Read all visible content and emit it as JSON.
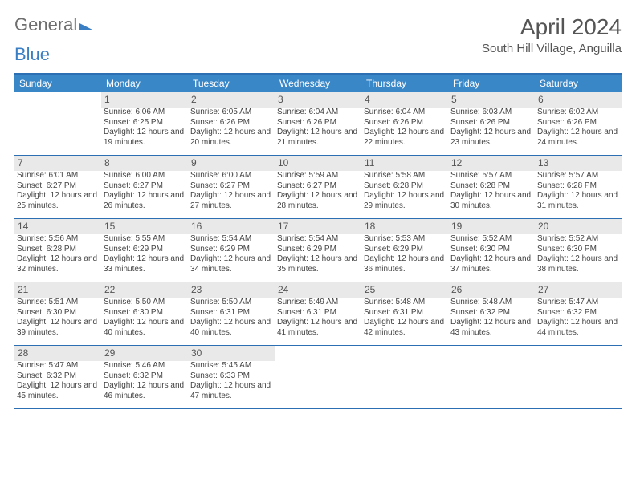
{
  "brand": {
    "text1": "General",
    "text2": "Blue"
  },
  "title": "April 2024",
  "location": "South Hill Village, Anguilla",
  "colors": {
    "header_bg": "#3a87c8",
    "rule": "#2d6fb3",
    "daynum_bg": "#e9e9e9",
    "text": "#444444"
  },
  "day_headers": [
    "Sunday",
    "Monday",
    "Tuesday",
    "Wednesday",
    "Thursday",
    "Friday",
    "Saturday"
  ],
  "weeks": [
    [
      {
        "day": "",
        "sunrise": "",
        "sunset": "",
        "daylight": ""
      },
      {
        "day": "1",
        "sunrise": "Sunrise: 6:06 AM",
        "sunset": "Sunset: 6:25 PM",
        "daylight": "Daylight: 12 hours and 19 minutes."
      },
      {
        "day": "2",
        "sunrise": "Sunrise: 6:05 AM",
        "sunset": "Sunset: 6:26 PM",
        "daylight": "Daylight: 12 hours and 20 minutes."
      },
      {
        "day": "3",
        "sunrise": "Sunrise: 6:04 AM",
        "sunset": "Sunset: 6:26 PM",
        "daylight": "Daylight: 12 hours and 21 minutes."
      },
      {
        "day": "4",
        "sunrise": "Sunrise: 6:04 AM",
        "sunset": "Sunset: 6:26 PM",
        "daylight": "Daylight: 12 hours and 22 minutes."
      },
      {
        "day": "5",
        "sunrise": "Sunrise: 6:03 AM",
        "sunset": "Sunset: 6:26 PM",
        "daylight": "Daylight: 12 hours and 23 minutes."
      },
      {
        "day": "6",
        "sunrise": "Sunrise: 6:02 AM",
        "sunset": "Sunset: 6:26 PM",
        "daylight": "Daylight: 12 hours and 24 minutes."
      }
    ],
    [
      {
        "day": "7",
        "sunrise": "Sunrise: 6:01 AM",
        "sunset": "Sunset: 6:27 PM",
        "daylight": "Daylight: 12 hours and 25 minutes."
      },
      {
        "day": "8",
        "sunrise": "Sunrise: 6:00 AM",
        "sunset": "Sunset: 6:27 PM",
        "daylight": "Daylight: 12 hours and 26 minutes."
      },
      {
        "day": "9",
        "sunrise": "Sunrise: 6:00 AM",
        "sunset": "Sunset: 6:27 PM",
        "daylight": "Daylight: 12 hours and 27 minutes."
      },
      {
        "day": "10",
        "sunrise": "Sunrise: 5:59 AM",
        "sunset": "Sunset: 6:27 PM",
        "daylight": "Daylight: 12 hours and 28 minutes."
      },
      {
        "day": "11",
        "sunrise": "Sunrise: 5:58 AM",
        "sunset": "Sunset: 6:28 PM",
        "daylight": "Daylight: 12 hours and 29 minutes."
      },
      {
        "day": "12",
        "sunrise": "Sunrise: 5:57 AM",
        "sunset": "Sunset: 6:28 PM",
        "daylight": "Daylight: 12 hours and 30 minutes."
      },
      {
        "day": "13",
        "sunrise": "Sunrise: 5:57 AM",
        "sunset": "Sunset: 6:28 PM",
        "daylight": "Daylight: 12 hours and 31 minutes."
      }
    ],
    [
      {
        "day": "14",
        "sunrise": "Sunrise: 5:56 AM",
        "sunset": "Sunset: 6:28 PM",
        "daylight": "Daylight: 12 hours and 32 minutes."
      },
      {
        "day": "15",
        "sunrise": "Sunrise: 5:55 AM",
        "sunset": "Sunset: 6:29 PM",
        "daylight": "Daylight: 12 hours and 33 minutes."
      },
      {
        "day": "16",
        "sunrise": "Sunrise: 5:54 AM",
        "sunset": "Sunset: 6:29 PM",
        "daylight": "Daylight: 12 hours and 34 minutes."
      },
      {
        "day": "17",
        "sunrise": "Sunrise: 5:54 AM",
        "sunset": "Sunset: 6:29 PM",
        "daylight": "Daylight: 12 hours and 35 minutes."
      },
      {
        "day": "18",
        "sunrise": "Sunrise: 5:53 AM",
        "sunset": "Sunset: 6:29 PM",
        "daylight": "Daylight: 12 hours and 36 minutes."
      },
      {
        "day": "19",
        "sunrise": "Sunrise: 5:52 AM",
        "sunset": "Sunset: 6:30 PM",
        "daylight": "Daylight: 12 hours and 37 minutes."
      },
      {
        "day": "20",
        "sunrise": "Sunrise: 5:52 AM",
        "sunset": "Sunset: 6:30 PM",
        "daylight": "Daylight: 12 hours and 38 minutes."
      }
    ],
    [
      {
        "day": "21",
        "sunrise": "Sunrise: 5:51 AM",
        "sunset": "Sunset: 6:30 PM",
        "daylight": "Daylight: 12 hours and 39 minutes."
      },
      {
        "day": "22",
        "sunrise": "Sunrise: 5:50 AM",
        "sunset": "Sunset: 6:30 PM",
        "daylight": "Daylight: 12 hours and 40 minutes."
      },
      {
        "day": "23",
        "sunrise": "Sunrise: 5:50 AM",
        "sunset": "Sunset: 6:31 PM",
        "daylight": "Daylight: 12 hours and 40 minutes."
      },
      {
        "day": "24",
        "sunrise": "Sunrise: 5:49 AM",
        "sunset": "Sunset: 6:31 PM",
        "daylight": "Daylight: 12 hours and 41 minutes."
      },
      {
        "day": "25",
        "sunrise": "Sunrise: 5:48 AM",
        "sunset": "Sunset: 6:31 PM",
        "daylight": "Daylight: 12 hours and 42 minutes."
      },
      {
        "day": "26",
        "sunrise": "Sunrise: 5:48 AM",
        "sunset": "Sunset: 6:32 PM",
        "daylight": "Daylight: 12 hours and 43 minutes."
      },
      {
        "day": "27",
        "sunrise": "Sunrise: 5:47 AM",
        "sunset": "Sunset: 6:32 PM",
        "daylight": "Daylight: 12 hours and 44 minutes."
      }
    ],
    [
      {
        "day": "28",
        "sunrise": "Sunrise: 5:47 AM",
        "sunset": "Sunset: 6:32 PM",
        "daylight": "Daylight: 12 hours and 45 minutes."
      },
      {
        "day": "29",
        "sunrise": "Sunrise: 5:46 AM",
        "sunset": "Sunset: 6:32 PM",
        "daylight": "Daylight: 12 hours and 46 minutes."
      },
      {
        "day": "30",
        "sunrise": "Sunrise: 5:45 AM",
        "sunset": "Sunset: 6:33 PM",
        "daylight": "Daylight: 12 hours and 47 minutes."
      },
      {
        "day": "",
        "sunrise": "",
        "sunset": "",
        "daylight": ""
      },
      {
        "day": "",
        "sunrise": "",
        "sunset": "",
        "daylight": ""
      },
      {
        "day": "",
        "sunrise": "",
        "sunset": "",
        "daylight": ""
      },
      {
        "day": "",
        "sunrise": "",
        "sunset": "",
        "daylight": ""
      }
    ]
  ]
}
